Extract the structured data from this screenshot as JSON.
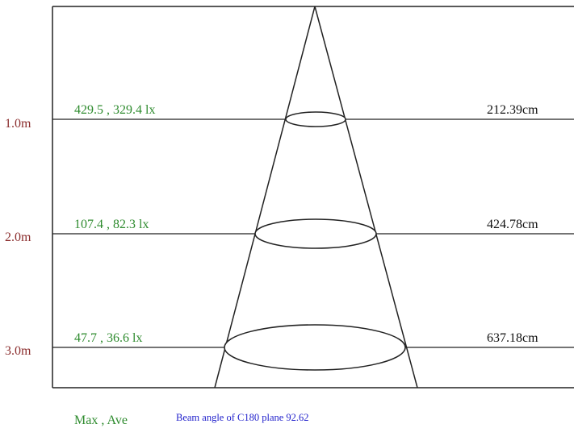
{
  "colors": {
    "line": "#222222",
    "distance_label": "#8b2d2d",
    "illuminance_label": "#2e8b2e",
    "diameter_label": "#111111",
    "beam_caption": "#2222cc"
  },
  "levels": [
    {
      "distance": "1.0m",
      "illuminance": "429.5 , 329.4 lx",
      "diameter": "212.39cm"
    },
    {
      "distance": "2.0m",
      "illuminance": "107.4 , 82.3 lx",
      "diameter": "424.78cm"
    },
    {
      "distance": "3.0m",
      "illuminance": "47.7 , 36.6 lx",
      "diameter": "637.18cm"
    }
  ],
  "legend": {
    "max_ave": "Max , Ave",
    "beam_angle": "Beam angle of C180 plane 92.62"
  }
}
